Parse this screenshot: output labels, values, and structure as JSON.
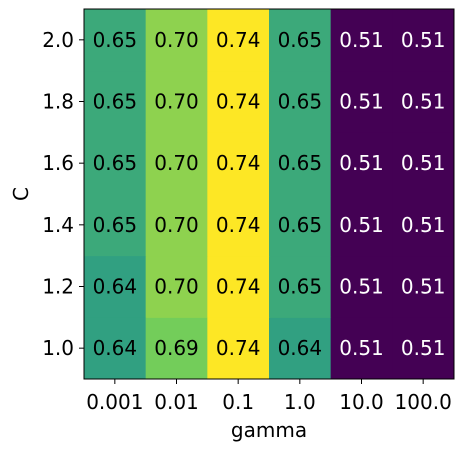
{
  "chart_data": {
    "type": "heatmap",
    "xlabel": "gamma",
    "ylabel": "C",
    "x_categories": [
      "0.001",
      "0.01",
      "0.1",
      "1.0",
      "10.0",
      "100.0"
    ],
    "y_categories": [
      "1.0",
      "1.2",
      "1.4",
      "1.6",
      "1.8",
      "2.0"
    ],
    "values": [
      [
        0.64,
        0.69,
        0.74,
        0.64,
        0.51,
        0.51
      ],
      [
        0.64,
        0.7,
        0.74,
        0.65,
        0.51,
        0.51
      ],
      [
        0.65,
        0.7,
        0.74,
        0.65,
        0.51,
        0.51
      ],
      [
        0.65,
        0.7,
        0.74,
        0.65,
        0.51,
        0.51
      ],
      [
        0.65,
        0.7,
        0.74,
        0.65,
        0.51,
        0.51
      ],
      [
        0.65,
        0.7,
        0.74,
        0.65,
        0.51,
        0.51
      ]
    ],
    "colormap": "viridis",
    "grid": false,
    "legend": "none"
  }
}
